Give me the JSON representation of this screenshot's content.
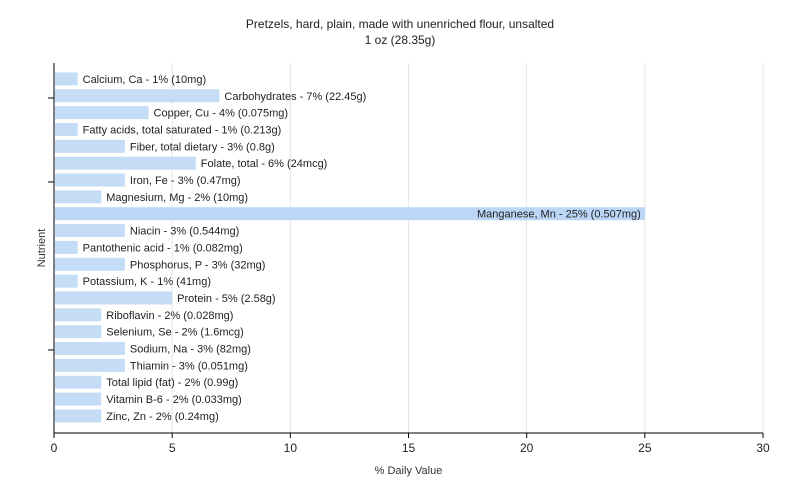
{
  "chart_data": {
    "type": "bar",
    "orientation": "horizontal",
    "title": "Pretzels, hard, plain, made with unenriched flour, unsalted",
    "subtitle": "1 oz (28.35g)",
    "xlabel": "% Daily Value",
    "ylabel": "Nutrient",
    "xlim": [
      0,
      30
    ],
    "xticks": [
      "0",
      "5",
      "10",
      "15",
      "20",
      "25",
      "30"
    ],
    "grid": true,
    "bar_color": "#c5dcf7",
    "bar_highlight_color": "#bcd6f5",
    "categories": [
      "Calcium, Ca",
      "Carbohydrates",
      "Copper, Cu",
      "Fatty acids, total saturated",
      "Fiber, total dietary",
      "Folate, total",
      "Iron, Fe",
      "Magnesium, Mg",
      "Manganese, Mn",
      "Niacin",
      "Pantothenic acid",
      "Phosphorus, P",
      "Potassium, K",
      "Protein",
      "Riboflavin",
      "Selenium, Se",
      "Sodium, Na",
      "Thiamin",
      "Total lipid (fat)",
      "Vitamin B-6",
      "Zinc, Zn"
    ],
    "values": [
      1,
      7,
      4,
      1,
      3,
      6,
      3,
      2,
      25,
      3,
      1,
      3,
      1,
      5,
      2,
      2,
      3,
      3,
      2,
      2,
      2
    ],
    "data_labels": [
      "Calcium, Ca - 1% (10mg)",
      "Carbohydrates - 7% (22.45g)",
      "Copper, Cu - 4% (0.075mg)",
      "Fatty acids, total saturated - 1% (0.213g)",
      "Fiber, total dietary - 3% (0.8g)",
      "Folate, total - 6% (24mcg)",
      "Iron, Fe - 3% (0.47mg)",
      "Magnesium, Mg - 2% (10mg)",
      "Manganese, Mn - 25% (0.507mg)",
      "Niacin - 3% (0.544mg)",
      "Pantothenic acid - 1% (0.082mg)",
      "Phosphorus, P - 3% (32mg)",
      "Potassium, K - 1% (41mg)",
      "Protein - 5% (2.58g)",
      "Riboflavin - 2% (0.028mg)",
      "Selenium, Se - 2% (1.6mcg)",
      "Sodium, Na - 3% (82mg)",
      "Thiamin - 3% (0.051mg)",
      "Total lipid (fat) - 2% (0.99g)",
      "Vitamin B-6 - 2% (0.033mg)",
      "Zinc, Zn - 2% (0.24mg)"
    ]
  }
}
